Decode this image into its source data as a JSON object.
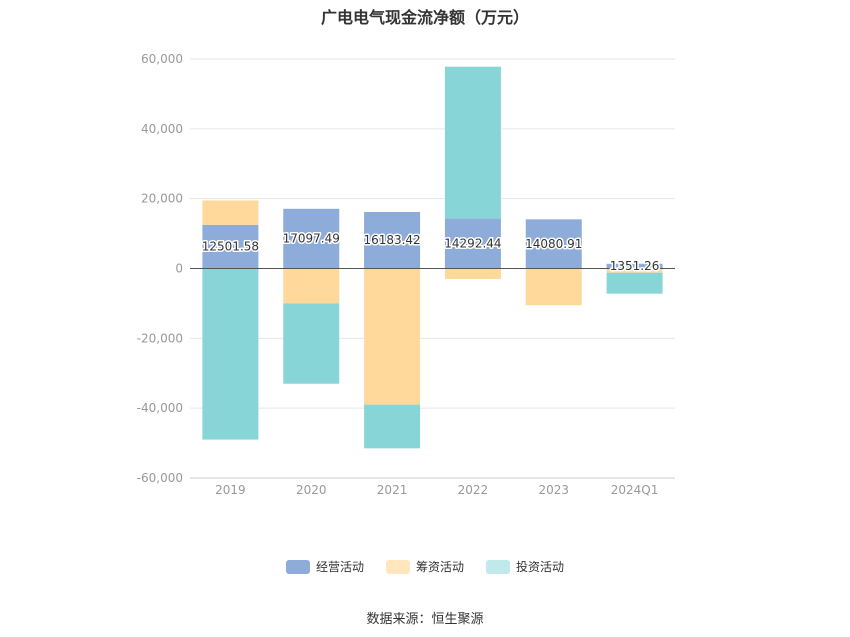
{
  "chart_data": {
    "type": "bar",
    "stacked": true,
    "title": "广电电气现金流净额（万元）",
    "categories": [
      "2019",
      "2020",
      "2021",
      "2022",
      "2023",
      "2024Q1"
    ],
    "series": [
      {
        "name": "经营活动",
        "color": "#8eacd9",
        "values": [
          12501.58,
          17097.49,
          16183.42,
          14292.44,
          14080.91,
          1351.26
        ]
      },
      {
        "name": "筹资活动",
        "color": "#ffd89b",
        "values": [
          7000,
          -10000,
          -39000,
          -3000,
          -10500,
          -1200
        ]
      },
      {
        "name": "投资活动",
        "color": "#88d5d8",
        "values": [
          -49000,
          -23000,
          -12500,
          43500,
          0,
          -6000
        ]
      }
    ],
    "data_labels": [
      "12501.58",
      "17097.49",
      "16183.42",
      "14292.44",
      "14080.91",
      "1351.26"
    ],
    "y_ticks": [
      "60,000",
      "40,000",
      "20,000",
      "0",
      "-20,000",
      "-40,000",
      "-60,000"
    ],
    "ylim": [
      -60000,
      60000
    ],
    "grid": true,
    "legend_position": "bottom"
  },
  "source": "数据来源：恒生聚源"
}
